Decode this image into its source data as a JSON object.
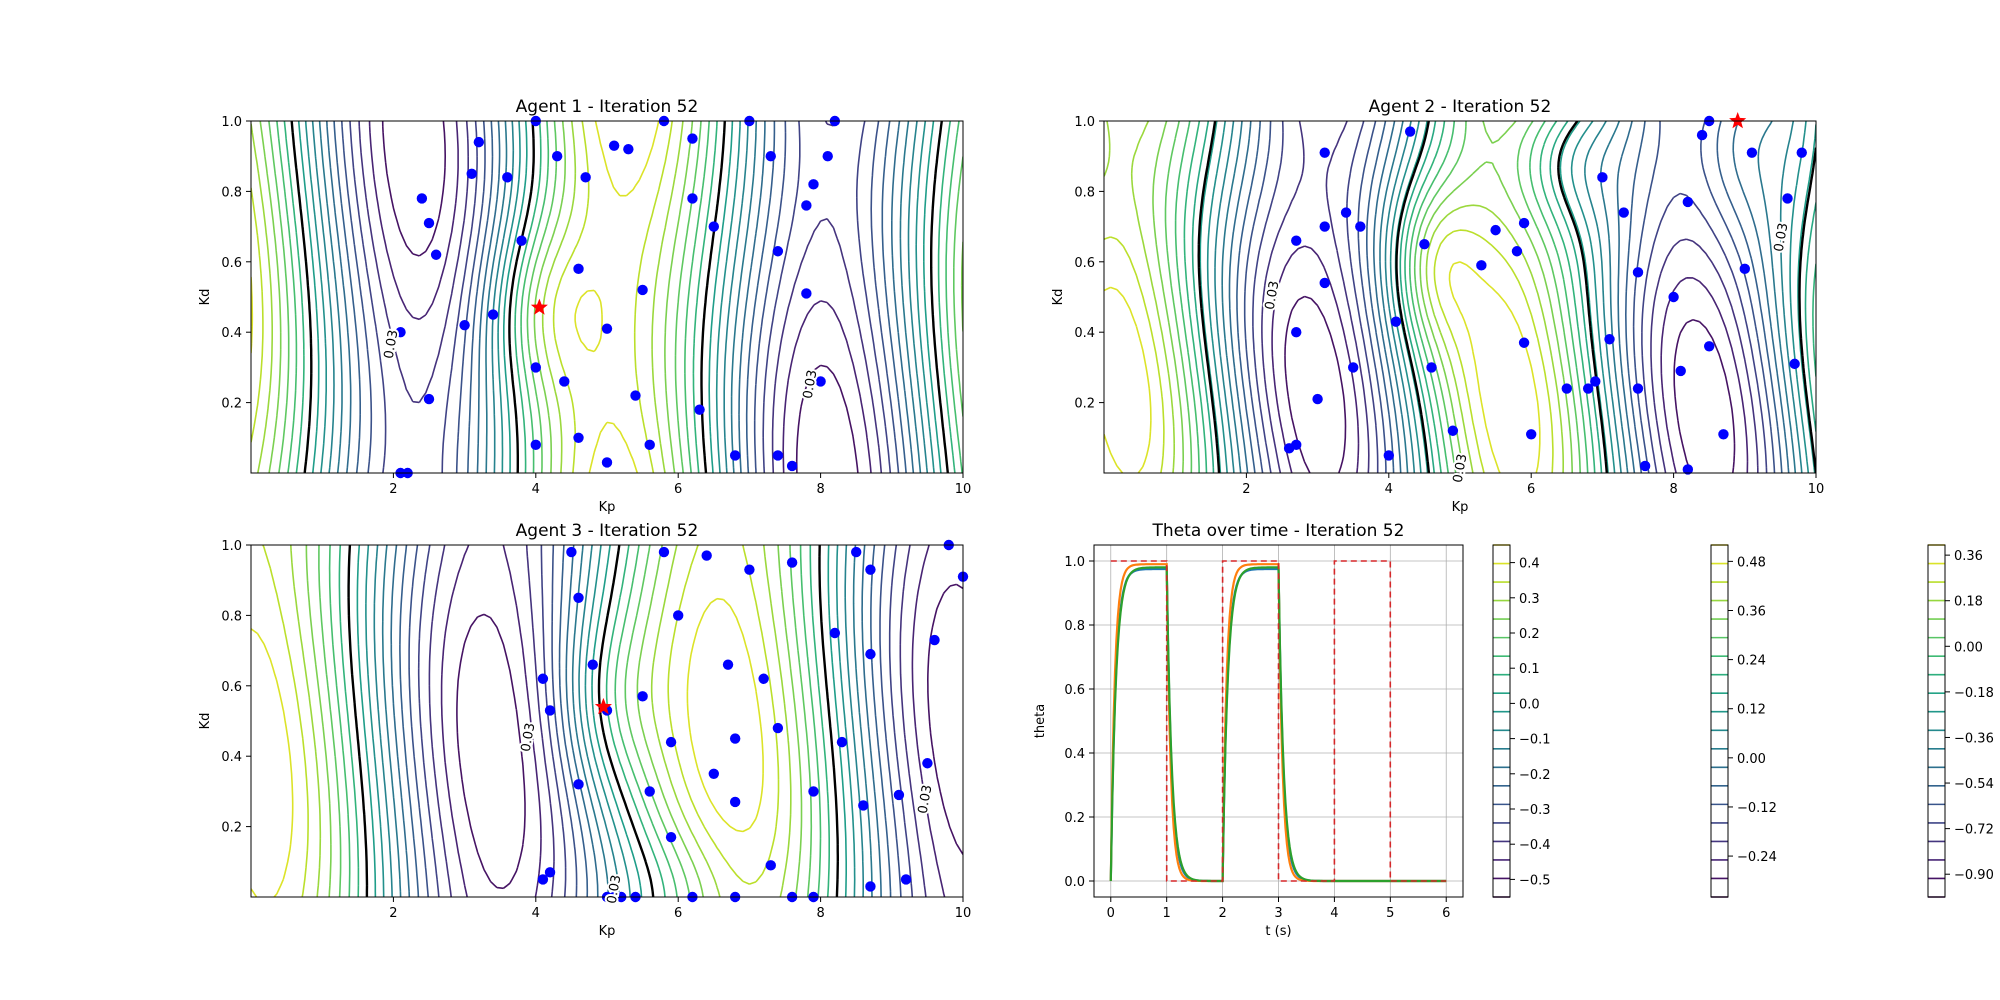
{
  "chart_data": [
    {
      "type": "contour",
      "title": "Agent 1 - Iteration 52",
      "xlabel": "Kp",
      "ylabel": "Kd",
      "xlim": [
        0,
        10
      ],
      "ylim": [
        0,
        1
      ],
      "xticks": [
        "2",
        "4",
        "6",
        "8",
        "10"
      ],
      "yticks": [
        "0.2",
        "0.4",
        "0.6",
        "0.8",
        "1.0"
      ],
      "contour_label": "0.03",
      "best": [
        4.05,
        0.47
      ],
      "points": [
        [
          2.1,
          0.4
        ],
        [
          2.1,
          0.0
        ],
        [
          2.2,
          0.0
        ],
        [
          2.4,
          0.78
        ],
        [
          2.5,
          0.71
        ],
        [
          2.6,
          0.62
        ],
        [
          2.5,
          0.21
        ],
        [
          3.0,
          0.42
        ],
        [
          3.1,
          0.85
        ],
        [
          3.2,
          0.94
        ],
        [
          3.4,
          0.45
        ],
        [
          3.6,
          0.84
        ],
        [
          3.8,
          0.66
        ],
        [
          4.0,
          0.3
        ],
        [
          4.0,
          0.08
        ],
        [
          4.0,
          1.0
        ],
        [
          4.3,
          0.9
        ],
        [
          4.4,
          0.26
        ],
        [
          4.6,
          0.58
        ],
        [
          4.7,
          0.84
        ],
        [
          4.6,
          0.1
        ],
        [
          5.0,
          0.41
        ],
        [
          5.1,
          0.93
        ],
        [
          5.3,
          0.92
        ],
        [
          5.0,
          0.03
        ],
        [
          5.4,
          0.22
        ],
        [
          5.5,
          0.52
        ],
        [
          5.6,
          0.08
        ],
        [
          5.8,
          1.0
        ],
        [
          6.2,
          0.95
        ],
        [
          6.2,
          0.78
        ],
        [
          6.5,
          0.7
        ],
        [
          6.3,
          0.18
        ],
        [
          6.8,
          0.05
        ],
        [
          7.0,
          1.0
        ],
        [
          7.3,
          0.9
        ],
        [
          7.4,
          0.63
        ],
        [
          7.4,
          0.05
        ],
        [
          7.6,
          0.02
        ],
        [
          7.8,
          0.51
        ],
        [
          7.8,
          0.76
        ],
        [
          7.9,
          0.82
        ],
        [
          8.1,
          0.9
        ],
        [
          8.2,
          1.0
        ],
        [
          8.0,
          0.26
        ]
      ]
    },
    {
      "type": "contour",
      "title": "Agent 2 - Iteration 52",
      "xlabel": "Kp",
      "ylabel": "Kd",
      "xlim": [
        0,
        10
      ],
      "ylim": [
        0,
        1
      ],
      "xticks": [
        "2",
        "4",
        "6",
        "8",
        "10"
      ],
      "yticks": [
        "0.2",
        "0.4",
        "0.6",
        "0.8",
        "1.0"
      ],
      "contour_label": "0.03",
      "best": [
        8.9,
        1.0
      ],
      "points": [
        [
          2.6,
          0.07
        ],
        [
          2.7,
          0.08
        ],
        [
          2.7,
          0.4
        ],
        [
          2.7,
          0.66
        ],
        [
          3.0,
          0.21
        ],
        [
          3.1,
          0.54
        ],
        [
          3.1,
          0.91
        ],
        [
          3.1,
          0.7
        ],
        [
          3.4,
          0.74
        ],
        [
          3.6,
          0.7
        ],
        [
          3.5,
          0.3
        ],
        [
          4.0,
          0.05
        ],
        [
          4.1,
          0.43
        ],
        [
          4.3,
          0.97
        ],
        [
          4.5,
          0.65
        ],
        [
          4.6,
          0.3
        ],
        [
          4.9,
          0.12
        ],
        [
          5.3,
          0.59
        ],
        [
          5.5,
          0.69
        ],
        [
          5.8,
          0.63
        ],
        [
          5.9,
          0.71
        ],
        [
          5.9,
          0.37
        ],
        [
          6.0,
          0.11
        ],
        [
          6.5,
          0.24
        ],
        [
          6.8,
          0.24
        ],
        [
          6.9,
          0.26
        ],
        [
          7.1,
          0.38
        ],
        [
          7.3,
          0.74
        ],
        [
          7.5,
          0.57
        ],
        [
          7.5,
          0.24
        ],
        [
          7.6,
          0.02
        ],
        [
          7.0,
          0.84
        ],
        [
          8.0,
          0.5
        ],
        [
          8.1,
          0.29
        ],
        [
          8.2,
          0.77
        ],
        [
          8.2,
          0.01
        ],
        [
          8.5,
          0.36
        ],
        [
          8.7,
          0.11
        ],
        [
          8.4,
          0.96
        ],
        [
          8.5,
          1.0
        ],
        [
          9.0,
          0.58
        ],
        [
          9.1,
          0.91
        ],
        [
          9.6,
          0.78
        ],
        [
          9.8,
          0.91
        ],
        [
          9.7,
          0.31
        ]
      ]
    },
    {
      "type": "contour",
      "title": "Agent 3 - Iteration 52",
      "xlabel": "Kp",
      "ylabel": "Kd",
      "xlim": [
        0,
        10
      ],
      "ylim": [
        0,
        1
      ],
      "xticks": [
        "2",
        "4",
        "6",
        "8",
        "10"
      ],
      "yticks": [
        "0.2",
        "0.4",
        "0.6",
        "0.8",
        "1.0"
      ],
      "contour_label": "0.03",
      "best": [
        4.95,
        0.54
      ],
      "points": [
        [
          4.1,
          0.05
        ],
        [
          4.2,
          0.07
        ],
        [
          4.1,
          0.62
        ],
        [
          4.2,
          0.53
        ],
        [
          4.5,
          0.98
        ],
        [
          4.6,
          0.85
        ],
        [
          4.6,
          0.32
        ],
        [
          4.8,
          0.66
        ],
        [
          5.0,
          0.53
        ],
        [
          5.0,
          0.0
        ],
        [
          5.1,
          0.0
        ],
        [
          5.2,
          0.0
        ],
        [
          5.4,
          0.0
        ],
        [
          5.5,
          0.57
        ],
        [
          5.6,
          0.3
        ],
        [
          5.8,
          0.98
        ],
        [
          6.0,
          0.8
        ],
        [
          5.9,
          0.44
        ],
        [
          5.9,
          0.17
        ],
        [
          6.2,
          0.0
        ],
        [
          6.4,
          0.97
        ],
        [
          6.5,
          0.35
        ],
        [
          6.7,
          0.66
        ],
        [
          6.8,
          0.45
        ],
        [
          6.8,
          0.27
        ],
        [
          6.8,
          0.0
        ],
        [
          7.0,
          0.93
        ],
        [
          7.2,
          0.62
        ],
        [
          7.3,
          0.09
        ],
        [
          7.4,
          0.48
        ],
        [
          7.6,
          0.0
        ],
        [
          7.6,
          0.95
        ],
        [
          7.9,
          0.3
        ],
        [
          7.9,
          0.0
        ],
        [
          8.2,
          0.75
        ],
        [
          8.3,
          0.44
        ],
        [
          8.5,
          0.98
        ],
        [
          8.6,
          0.26
        ],
        [
          8.7,
          0.69
        ],
        [
          8.7,
          0.93
        ],
        [
          8.7,
          0.03
        ],
        [
          9.1,
          0.29
        ],
        [
          9.2,
          0.05
        ],
        [
          9.5,
          0.38
        ],
        [
          9.6,
          0.73
        ],
        [
          9.8,
          1.0
        ],
        [
          10.0,
          0.91
        ]
      ]
    },
    {
      "type": "line",
      "title": "Theta over time - Iteration 52",
      "xlabel": "t (s)",
      "ylabel": "theta",
      "xlim": [
        -0.3,
        6.3
      ],
      "ylim": [
        -0.05,
        1.05
      ],
      "xticks": [
        "0",
        "1",
        "2",
        "3",
        "4",
        "5",
        "6"
      ],
      "yticks": [
        "0.0",
        "0.2",
        "0.4",
        "0.6",
        "0.8",
        "1.0"
      ],
      "grid": true,
      "reference": {
        "t": [
          0,
          1,
          1,
          2,
          2,
          3,
          3,
          4,
          4,
          5,
          5,
          6
        ],
        "theta": [
          1,
          1,
          0,
          0,
          1,
          1,
          0,
          0,
          1,
          1,
          0,
          0
        ],
        "color": "#d62728"
      },
      "series": [
        {
          "color": "#1f77b4",
          "final": 0.975,
          "tau": 0.085
        },
        {
          "color": "#ff7f0e",
          "final": 0.99,
          "tau": 0.07
        },
        {
          "color": "#2ca02c",
          "final": 0.98,
          "tau": 0.09
        }
      ]
    }
  ],
  "colorbars": [
    {
      "ticks": [
        "0.4",
        "0.3",
        "0.2",
        "0.1",
        "0.0",
        "−0.1",
        "−0.2",
        "−0.3",
        "−0.4",
        "−0.5"
      ],
      "max": 0.45,
      "min": -0.55,
      "levels": 20
    },
    {
      "ticks": [
        "0.48",
        "0.36",
        "0.24",
        "0.12",
        "0.00",
        "−0.12",
        "−0.24"
      ],
      "max": 0.52,
      "min": -0.34,
      "levels": 20
    },
    {
      "ticks": [
        "0.36",
        "0.18",
        "0.00",
        "−0.18",
        "−0.36",
        "−0.54",
        "−0.72",
        "−0.90"
      ],
      "max": 0.4,
      "min": -0.99,
      "levels": 20
    }
  ]
}
